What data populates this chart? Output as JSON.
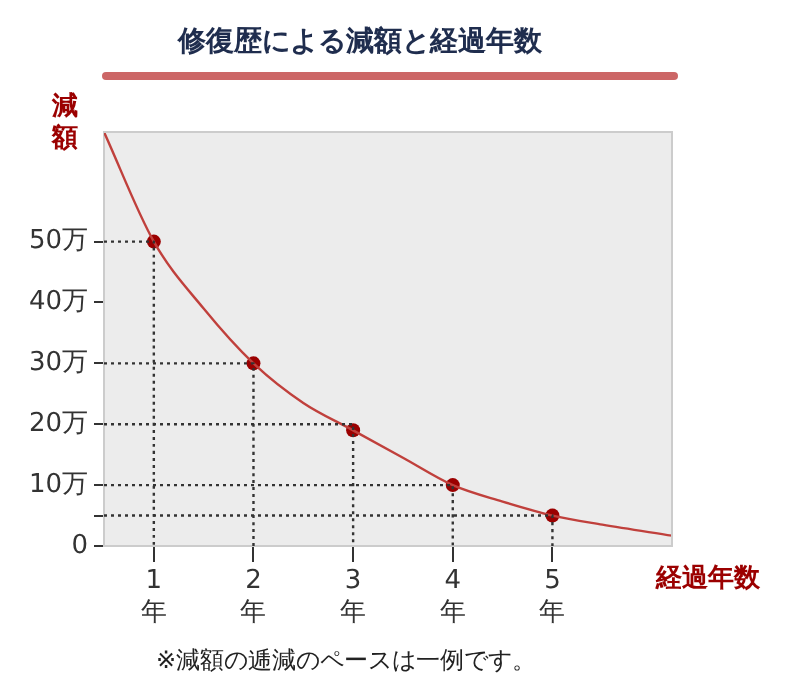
{
  "chart_data": {
    "type": "line",
    "title": "修復歴による減額と経過年数",
    "xlabel": "経過年数",
    "ylabel": "減額",
    "xlim": [
      0.5,
      6.2
    ],
    "ylim": [
      0,
      68
    ],
    "xticks": [
      {
        "value": 1,
        "label": "1\n年"
      },
      {
        "value": 2,
        "label": "2\n年"
      },
      {
        "value": 3,
        "label": "3\n年"
      },
      {
        "value": 4,
        "label": "4\n年"
      },
      {
        "value": 5,
        "label": "5\n年"
      }
    ],
    "yticks": [
      0,
      {
        "value": 5,
        "label": null
      },
      {
        "value": 10,
        "label": "10万"
      },
      {
        "value": 20,
        "label": "20万"
      },
      {
        "value": 30,
        "label": "30万"
      },
      {
        "value": 40,
        "label": "40万"
      },
      {
        "value": 50,
        "label": "50万"
      }
    ],
    "grid": false,
    "legend": false,
    "series": [
      {
        "color": "#333333",
        "line_style": "dotted",
        "marker": "none",
        "x": [
          0.5,
          1,
          1
        ],
        "values": [
          50,
          50,
          0
        ]
      },
      {
        "color": "#333333",
        "line_style": "dotted",
        "marker": "none",
        "x": [
          0.5,
          2,
          2
        ],
        "values": [
          30,
          30,
          0
        ]
      },
      {
        "color": "#333333",
        "line_style": "dotted",
        "marker": "none",
        "x": [
          0.5,
          3,
          3
        ],
        "values": [
          20,
          20,
          0
        ]
      },
      {
        "color": "#333333",
        "line_style": "dotted",
        "marker": "none",
        "x": [
          0.5,
          4,
          4
        ],
        "values": [
          10,
          10,
          0
        ]
      },
      {
        "color": "#333333",
        "line_style": "dotted",
        "marker": "none",
        "x": [
          0.5,
          5,
          5
        ],
        "values": [
          5,
          5,
          0
        ]
      },
      {
        "color": "#c0403c",
        "line_style": "solid",
        "marker": "none",
        "x": [
          0.5,
          1,
          1.5,
          2,
          2.5,
          3,
          3.5,
          4,
          4.5,
          5,
          5.5,
          6.2
        ],
        "values": [
          68,
          50,
          39,
          30,
          23.5,
          19,
          14.5,
          10,
          7.3,
          5,
          3.5,
          1.7
        ]
      },
      {
        "type": "scatter",
        "color": "#9b0000",
        "marker": "circle",
        "x": [
          1,
          2,
          3,
          4,
          5
        ],
        "values": [
          50,
          30,
          19,
          10,
          5
        ]
      }
    ],
    "annotations": [
      "※減額の逓減のペースは一例です。"
    ]
  }
}
